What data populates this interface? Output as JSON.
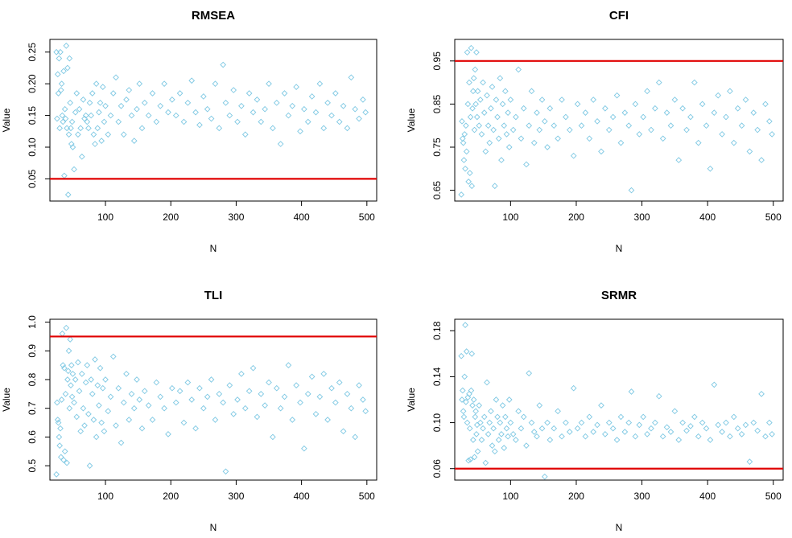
{
  "chart_data": [
    {
      "type": "scatter",
      "title": "RMSEA",
      "xlabel": "N",
      "ylabel": "Value",
      "xlim": [
        15,
        515
      ],
      "ylim": [
        0.015,
        0.27
      ],
      "xticks": [
        "100",
        "200",
        "300",
        "400",
        "500"
      ],
      "yticks": [
        "0.05",
        "0.10",
        "0.15",
        "0.20",
        "0.25"
      ],
      "reference_line": 0.05,
      "point_color": "#7ec8e3",
      "line_color": "#e00000",
      "x": [
        25,
        26,
        27,
        28,
        29,
        30,
        31,
        32,
        33,
        34,
        35,
        36,
        37,
        38,
        39,
        40,
        41,
        42,
        43,
        44,
        45,
        46,
        47,
        48,
        49,
        50,
        52,
        54,
        56,
        58,
        60,
        62,
        64,
        66,
        68,
        70,
        72,
        74,
        76,
        78,
        80,
        82,
        84,
        86,
        88,
        90,
        92,
        94,
        96,
        98,
        100,
        104,
        108,
        112,
        116,
        120,
        124,
        128,
        132,
        136,
        140,
        144,
        148,
        152,
        156,
        160,
        166,
        172,
        178,
        184,
        190,
        196,
        202,
        208,
        214,
        220,
        226,
        232,
        238,
        244,
        250,
        256,
        262,
        268,
        274,
        280,
        284,
        290,
        296,
        302,
        308,
        314,
        320,
        326,
        332,
        338,
        344,
        350,
        356,
        362,
        368,
        374,
        380,
        386,
        392,
        398,
        404,
        410,
        416,
        422,
        428,
        434,
        440,
        446,
        452,
        458,
        464,
        470,
        476,
        482,
        488,
        494,
        498
      ],
      "y": [
        0.25,
        0.145,
        0.215,
        0.185,
        0.24,
        0.13,
        0.25,
        0.19,
        0.2,
        0.15,
        0.14,
        0.22,
        0.055,
        0.16,
        0.145,
        0.26,
        0.13,
        0.225,
        0.025,
        0.12,
        0.24,
        0.17,
        0.13,
        0.105,
        0.14,
        0.1,
        0.065,
        0.155,
        0.185,
        0.12,
        0.16,
        0.13,
        0.085,
        0.175,
        0.145,
        0.15,
        0.14,
        0.13,
        0.17,
        0.15,
        0.185,
        0.12,
        0.105,
        0.2,
        0.13,
        0.155,
        0.17,
        0.11,
        0.195,
        0.14,
        0.165,
        0.12,
        0.15,
        0.185,
        0.21,
        0.14,
        0.165,
        0.12,
        0.175,
        0.19,
        0.15,
        0.11,
        0.16,
        0.2,
        0.13,
        0.17,
        0.15,
        0.185,
        0.14,
        0.165,
        0.2,
        0.155,
        0.175,
        0.15,
        0.185,
        0.14,
        0.17,
        0.205,
        0.155,
        0.135,
        0.18,
        0.16,
        0.145,
        0.2,
        0.13,
        0.23,
        0.17,
        0.15,
        0.19,
        0.14,
        0.165,
        0.12,
        0.185,
        0.155,
        0.175,
        0.14,
        0.16,
        0.2,
        0.13,
        0.17,
        0.105,
        0.185,
        0.15,
        0.165,
        0.195,
        0.125,
        0.16,
        0.14,
        0.18,
        0.155,
        0.2,
        0.13,
        0.17,
        0.15,
        0.185,
        0.14,
        0.165,
        0.13,
        0.21,
        0.16,
        0.145,
        0.175,
        0.155
      ]
    },
    {
      "type": "scatter",
      "title": "CFI",
      "xlabel": "N",
      "ylabel": "Value",
      "xlim": [
        15,
        515
      ],
      "ylim": [
        0.625,
        1.0
      ],
      "xticks": [
        "100",
        "200",
        "300",
        "400",
        "500"
      ],
      "yticks": [
        "0.65",
        "0.75",
        "0.85",
        "0.95"
      ],
      "reference_line": 0.95,
      "point_color": "#7ec8e3",
      "line_color": "#e00000",
      "x": [
        25,
        26,
        27,
        28,
        29,
        30,
        31,
        32,
        33,
        34,
        35,
        36,
        37,
        38,
        39,
        40,
        41,
        42,
        43,
        44,
        45,
        46,
        47,
        48,
        49,
        50,
        52,
        54,
        56,
        58,
        60,
        62,
        64,
        66,
        68,
        70,
        72,
        74,
        76,
        78,
        80,
        82,
        84,
        86,
        88,
        90,
        92,
        94,
        96,
        98,
        100,
        104,
        108,
        112,
        116,
        120,
        124,
        128,
        132,
        136,
        140,
        144,
        148,
        152,
        156,
        160,
        166,
        172,
        178,
        184,
        190,
        196,
        202,
        208,
        214,
        220,
        226,
        232,
        238,
        244,
        250,
        256,
        262,
        268,
        274,
        280,
        284,
        290,
        296,
        302,
        308,
        314,
        320,
        326,
        332,
        338,
        344,
        350,
        356,
        362,
        368,
        374,
        380,
        386,
        392,
        398,
        404,
        410,
        416,
        422,
        428,
        434,
        440,
        446,
        452,
        458,
        464,
        470,
        476,
        482,
        488,
        494,
        498
      ],
      "y": [
        0.64,
        0.81,
        0.77,
        0.76,
        0.72,
        0.78,
        0.7,
        0.8,
        0.74,
        0.97,
        0.85,
        0.67,
        0.9,
        0.69,
        0.82,
        0.98,
        0.66,
        0.84,
        0.88,
        0.91,
        0.79,
        0.93,
        0.85,
        0.97,
        0.82,
        0.88,
        0.8,
        0.86,
        0.78,
        0.9,
        0.83,
        0.74,
        0.87,
        0.8,
        0.76,
        0.84,
        0.89,
        0.79,
        0.66,
        0.86,
        0.82,
        0.77,
        0.91,
        0.72,
        0.85,
        0.8,
        0.88,
        0.78,
        0.83,
        0.75,
        0.86,
        0.79,
        0.82,
        0.93,
        0.77,
        0.84,
        0.71,
        0.8,
        0.88,
        0.76,
        0.83,
        0.79,
        0.86,
        0.81,
        0.75,
        0.84,
        0.8,
        0.77,
        0.86,
        0.82,
        0.79,
        0.73,
        0.85,
        0.8,
        0.83,
        0.77,
        0.86,
        0.81,
        0.74,
        0.84,
        0.79,
        0.82,
        0.87,
        0.76,
        0.83,
        0.8,
        0.65,
        0.85,
        0.78,
        0.82,
        0.88,
        0.79,
        0.84,
        0.9,
        0.77,
        0.83,
        0.8,
        0.86,
        0.72,
        0.84,
        0.79,
        0.82,
        0.9,
        0.76,
        0.85,
        0.8,
        0.7,
        0.83,
        0.87,
        0.78,
        0.82,
        0.88,
        0.76,
        0.84,
        0.8,
        0.86,
        0.74,
        0.83,
        0.79,
        0.72,
        0.85,
        0.81,
        0.78
      ]
    },
    {
      "type": "scatter",
      "title": "TLI",
      "xlabel": "N",
      "ylabel": "Value",
      "xlim": [
        15,
        515
      ],
      "ylim": [
        0.45,
        1.01
      ],
      "xticks": [
        "100",
        "200",
        "300",
        "400",
        "500"
      ],
      "yticks": [
        "0.5",
        "0.6",
        "0.7",
        "0.8",
        "0.9",
        "1.0"
      ],
      "reference_line": 0.95,
      "point_color": "#7ec8e3",
      "line_color": "#e00000",
      "x": [
        25,
        26,
        27,
        28,
        29,
        30,
        31,
        32,
        33,
        34,
        35,
        36,
        37,
        38,
        39,
        40,
        41,
        42,
        43,
        44,
        45,
        46,
        47,
        48,
        49,
        50,
        52,
        54,
        56,
        58,
        60,
        62,
        64,
        66,
        68,
        70,
        72,
        74,
        76,
        78,
        80,
        82,
        84,
        86,
        88,
        90,
        92,
        94,
        96,
        98,
        100,
        104,
        108,
        112,
        116,
        120,
        124,
        128,
        132,
        136,
        140,
        144,
        148,
        152,
        156,
        160,
        166,
        172,
        178,
        184,
        190,
        196,
        202,
        208,
        214,
        220,
        226,
        232,
        238,
        244,
        250,
        256,
        262,
        268,
        274,
        280,
        284,
        290,
        296,
        302,
        308,
        314,
        320,
        326,
        332,
        338,
        344,
        350,
        356,
        362,
        368,
        374,
        380,
        386,
        392,
        398,
        404,
        410,
        416,
        422,
        428,
        434,
        440,
        446,
        452,
        458,
        464,
        470,
        476,
        482,
        488,
        494,
        498
      ],
      "y": [
        0.47,
        0.72,
        0.66,
        0.65,
        0.6,
        0.57,
        0.63,
        0.53,
        0.73,
        0.96,
        0.85,
        0.52,
        0.84,
        0.55,
        0.75,
        0.98,
        0.51,
        0.8,
        0.83,
        0.9,
        0.7,
        0.94,
        0.78,
        0.85,
        0.74,
        0.82,
        0.72,
        0.8,
        0.67,
        0.86,
        0.76,
        0.62,
        0.82,
        0.7,
        0.64,
        0.79,
        0.85,
        0.68,
        0.5,
        0.8,
        0.75,
        0.66,
        0.87,
        0.6,
        0.78,
        0.71,
        0.84,
        0.65,
        0.77,
        0.62,
        0.8,
        0.69,
        0.74,
        0.88,
        0.64,
        0.77,
        0.58,
        0.72,
        0.82,
        0.66,
        0.75,
        0.7,
        0.8,
        0.73,
        0.63,
        0.76,
        0.71,
        0.66,
        0.79,
        0.74,
        0.7,
        0.61,
        0.77,
        0.72,
        0.76,
        0.65,
        0.79,
        0.73,
        0.63,
        0.77,
        0.7,
        0.74,
        0.8,
        0.66,
        0.75,
        0.72,
        0.48,
        0.78,
        0.68,
        0.73,
        0.82,
        0.7,
        0.76,
        0.84,
        0.67,
        0.75,
        0.71,
        0.79,
        0.6,
        0.77,
        0.7,
        0.74,
        0.85,
        0.66,
        0.78,
        0.72,
        0.56,
        0.75,
        0.81,
        0.68,
        0.74,
        0.82,
        0.66,
        0.77,
        0.72,
        0.79,
        0.62,
        0.75,
        0.7,
        0.6,
        0.78,
        0.73,
        0.69
      ]
    },
    {
      "type": "scatter",
      "title": "SRMR",
      "xlabel": "N",
      "ylabel": "Value",
      "xlim": [
        15,
        515
      ],
      "ylim": [
        0.05,
        0.19
      ],
      "xticks": [
        "100",
        "200",
        "300",
        "400",
        "500"
      ],
      "yticks": [
        "0.06",
        "0.10",
        "0.14",
        "0.18"
      ],
      "reference_line": 0.06,
      "point_color": "#7ec8e3",
      "line_color": "#e00000",
      "x": [
        25,
        26,
        27,
        28,
        29,
        30,
        31,
        32,
        33,
        34,
        35,
        36,
        37,
        38,
        39,
        40,
        41,
        42,
        43,
        44,
        45,
        46,
        47,
        48,
        49,
        50,
        52,
        54,
        56,
        58,
        60,
        62,
        64,
        66,
        68,
        70,
        72,
        74,
        76,
        78,
        80,
        82,
        84,
        86,
        88,
        90,
        92,
        94,
        96,
        98,
        100,
        104,
        108,
        112,
        116,
        120,
        124,
        128,
        132,
        136,
        140,
        144,
        148,
        152,
        156,
        160,
        166,
        172,
        178,
        184,
        190,
        196,
        202,
        208,
        214,
        220,
        226,
        232,
        238,
        244,
        250,
        256,
        262,
        268,
        274,
        280,
        284,
        290,
        296,
        302,
        308,
        314,
        320,
        326,
        332,
        338,
        344,
        350,
        356,
        362,
        368,
        374,
        380,
        386,
        392,
        398,
        404,
        410,
        416,
        422,
        428,
        434,
        440,
        446,
        452,
        458,
        464,
        470,
        476,
        482,
        488,
        494,
        498
      ],
      "y": [
        0.158,
        0.12,
        0.128,
        0.11,
        0.105,
        0.14,
        0.185,
        0.118,
        0.162,
        0.1,
        0.122,
        0.067,
        0.125,
        0.095,
        0.068,
        0.128,
        0.16,
        0.115,
        0.085,
        0.12,
        0.07,
        0.105,
        0.11,
        0.09,
        0.098,
        0.075,
        0.115,
        0.1,
        0.085,
        0.095,
        0.105,
        0.065,
        0.135,
        0.09,
        0.1,
        0.11,
        0.08,
        0.095,
        0.075,
        0.12,
        0.105,
        0.085,
        0.1,
        0.09,
        0.115,
        0.078,
        0.105,
        0.095,
        0.088,
        0.12,
        0.1,
        0.09,
        0.085,
        0.11,
        0.095,
        0.105,
        0.08,
        0.143,
        0.1,
        0.092,
        0.088,
        0.115,
        0.095,
        0.053,
        0.1,
        0.085,
        0.095,
        0.11,
        0.088,
        0.1,
        0.092,
        0.13,
        0.095,
        0.1,
        0.088,
        0.105,
        0.092,
        0.098,
        0.115,
        0.09,
        0.1,
        0.095,
        0.085,
        0.105,
        0.092,
        0.1,
        0.127,
        0.088,
        0.098,
        0.105,
        0.09,
        0.095,
        0.1,
        0.123,
        0.088,
        0.096,
        0.092,
        0.11,
        0.085,
        0.1,
        0.093,
        0.097,
        0.105,
        0.088,
        0.1,
        0.095,
        0.085,
        0.133,
        0.098,
        0.092,
        0.1,
        0.088,
        0.105,
        0.095,
        0.09,
        0.098,
        0.066,
        0.1,
        0.093,
        0.125,
        0.088,
        0.1,
        0.09
      ]
    }
  ]
}
